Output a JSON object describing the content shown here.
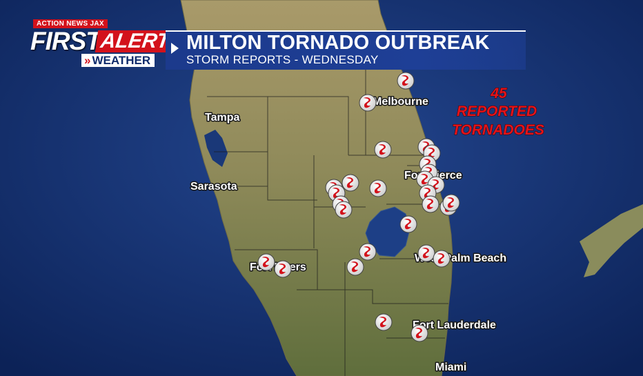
{
  "branding": {
    "top_label": "ACTION NEWS JAX",
    "first": "FIRST",
    "alert": "ALERT",
    "weather_chevrons": "»",
    "weather": "WEATHER",
    "colors": {
      "red": "#d3121b",
      "navy": "#0f2b6b"
    }
  },
  "banner": {
    "title": "MILTON TORNADO OUTBREAK",
    "subtitle": "STORM REPORTS - WEDNESDAY"
  },
  "map": {
    "region": "South Florida peninsula",
    "cities": [
      "Melbourne",
      "Tampa",
      "Fort Pierce",
      "Sarasota",
      "Fort Myers",
      "West Palm Beach",
      "Fort Lauderdale",
      "Miami"
    ],
    "marker_icon": "tornado-report-icon",
    "marker_color": "#d3121b",
    "report_count_lines": [
      "45",
      "REPORTED",
      "TORNADOES"
    ]
  }
}
